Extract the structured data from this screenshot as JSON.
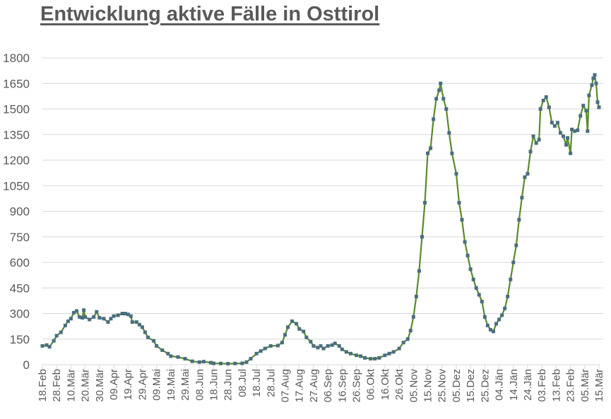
{
  "chart_data": {
    "type": "line",
    "title": "Entwicklung aktive Fälle in Osttirol",
    "xlabel": "",
    "ylabel": "",
    "ylim": [
      0,
      1800
    ],
    "yticks": [
      "0",
      "150",
      "300",
      "450",
      "600",
      "750",
      "900",
      "1050",
      "1200",
      "1350",
      "1500",
      "1650",
      "1800"
    ],
    "xticks": [
      "18.Feb",
      "28.Feb",
      "10.Mär",
      "20.Mär",
      "30.Mär",
      "09.Apr",
      "19.Apr",
      "29.Apr",
      "09.Mai",
      "19.Mai",
      "29.Mai",
      "08.Jun",
      "18.Jun",
      "28.Jun",
      "08.Jul",
      "18.Jul",
      "28.Jul",
      "07.Aug",
      "17.Aug",
      "27.Aug",
      "06.Sep",
      "16.Sep",
      "26.Sep",
      "06.Okt",
      "16.Okt",
      "26.Okt",
      "05.Nov",
      "15.Nov",
      "25.Nov",
      "05.Dez",
      "15.Dez",
      "25.Dez",
      "04.Jän",
      "14.Jän",
      "24.Jän",
      "03.Feb",
      "13.Feb",
      "23.Feb",
      "05.Mär",
      "15.Mär"
    ],
    "grid": "horizontal",
    "legend": "none",
    "colors": {
      "line": "#5a8a2c",
      "marker": "#4a6e80",
      "grid": "#d9d9d9",
      "text": "#595959"
    },
    "series": [
      {
        "x": [
          "18.Feb",
          "21.Feb",
          "23.Feb",
          "26.Feb",
          "28.Feb",
          "03.Mär",
          "06.Mär",
          "08.Mär",
          "10.Mär",
          "12.Mär",
          "14.Mär",
          "16.Mär",
          "18.Mär",
          "19.Mär",
          "20.Mär",
          "23.Mär",
          "26.Mär",
          "28.Mär",
          "30.Mär",
          "02.Apr",
          "05.Apr",
          "07.Apr",
          "09.Apr",
          "12.Apr",
          "15.Apr",
          "17.Apr",
          "19.Apr",
          "21.Apr",
          "22.Apr",
          "25.Apr",
          "27.Apr",
          "29.Apr",
          "01.Mai",
          "03.Mai",
          "07.Mai",
          "09.Mai",
          "13.Mai",
          "17.Mai",
          "19.Mai",
          "24.Mai",
          "29.Mai",
          "03.Jun",
          "08.Jun",
          "11.Jun",
          "16.Jun",
          "18.Jun",
          "23.Jun",
          "28.Jun",
          "03.Jul",
          "08.Jul",
          "11.Jul",
          "14.Jul",
          "18.Jul",
          "21.Jul",
          "24.Jul",
          "28.Jul",
          "02.Aug",
          "05.Aug",
          "07.Aug",
          "09.Aug",
          "12.Aug",
          "15.Aug",
          "17.Aug",
          "20.Aug",
          "22.Aug",
          "25.Aug",
          "27.Aug",
          "30.Aug",
          "01.Sep",
          "03.Sep",
          "06.Sep",
          "09.Sep",
          "11.Sep",
          "14.Sep",
          "16.Sep",
          "19.Sep",
          "22.Sep",
          "26.Sep",
          "29.Sep",
          "02.Okt",
          "06.Okt",
          "09.Okt",
          "12.Okt",
          "16.Okt",
          "19.Okt",
          "22.Okt",
          "26.Okt",
          "29.Okt",
          "01.Nov",
          "03.Nov",
          "05.Nov",
          "07.Nov",
          "09.Nov",
          "11.Nov",
          "13.Nov",
          "15.Nov",
          "17.Nov",
          "19.Nov",
          "21.Nov",
          "23.Nov",
          "24.Nov",
          "26.Nov",
          "28.Nov",
          "30.Nov",
          "02.Dez",
          "05.Dez",
          "07.Dez",
          "09.Dez",
          "11.Dez",
          "13.Dez",
          "15.Dez",
          "17.Dez",
          "19.Dez",
          "21.Dez",
          "23.Dez",
          "25.Dez",
          "27.Dez",
          "29.Dez",
          "31.Dez",
          "02.Jän",
          "04.Jän",
          "06.Jän",
          "08.Jän",
          "10.Jän",
          "12.Jän",
          "14.Jän",
          "16.Jän",
          "18.Jän",
          "20.Jän",
          "22.Jän",
          "24.Jän",
          "26.Jän",
          "28.Jän",
          "30.Jän",
          "01.Feb",
          "02.Feb",
          "04.Feb",
          "06.Feb",
          "08.Feb",
          "10.Feb",
          "12.Feb",
          "14.Feb",
          "16.Feb",
          "18.Feb",
          "20.Feb",
          "21.Feb",
          "23.Feb",
          "24.Feb",
          "26.Feb",
          "28.Feb",
          "02.Mär",
          "04.Mär",
          "06.Mär",
          "07.Mär",
          "08.Mär",
          "10.Mär",
          "11.Mär",
          "12.Mär",
          "13.Mär",
          "14.Mär",
          "15.Mär"
        ],
        "values": [
          110,
          115,
          105,
          140,
          170,
          190,
          230,
          255,
          270,
          305,
          315,
          280,
          275,
          320,
          280,
          265,
          280,
          310,
          275,
          270,
          250,
          270,
          285,
          290,
          300,
          300,
          295,
          285,
          250,
          250,
          235,
          220,
          190,
          160,
          140,
          110,
          85,
          65,
          50,
          45,
          35,
          20,
          15,
          18,
          12,
          8,
          7,
          6,
          7,
          8,
          15,
          35,
          65,
          80,
          95,
          110,
          112,
          130,
          175,
          220,
          255,
          240,
          210,
          195,
          160,
          135,
          110,
          100,
          110,
          95,
          110,
          115,
          125,
          110,
          90,
          75,
          65,
          55,
          50,
          40,
          35,
          35,
          40,
          55,
          65,
          75,
          95,
          130,
          150,
          200,
          280,
          400,
          550,
          750,
          950,
          1240,
          1270,
          1440,
          1560,
          1610,
          1650,
          1560,
          1500,
          1360,
          1240,
          1120,
          950,
          850,
          720,
          640,
          560,
          500,
          450,
          410,
          370,
          280,
          230,
          205,
          195,
          240,
          265,
          290,
          330,
          400,
          500,
          600,
          700,
          850,
          980,
          1100,
          1120,
          1250,
          1340,
          1300,
          1320,
          1500,
          1550,
          1570,
          1510,
          1420,
          1400,
          1420,
          1360,
          1340,
          1290,
          1330,
          1240,
          1380,
          1370,
          1375,
          1460,
          1520,
          1490,
          1370,
          1580,
          1640,
          1680,
          1700,
          1650,
          1540,
          1510
        ]
      }
    ]
  }
}
